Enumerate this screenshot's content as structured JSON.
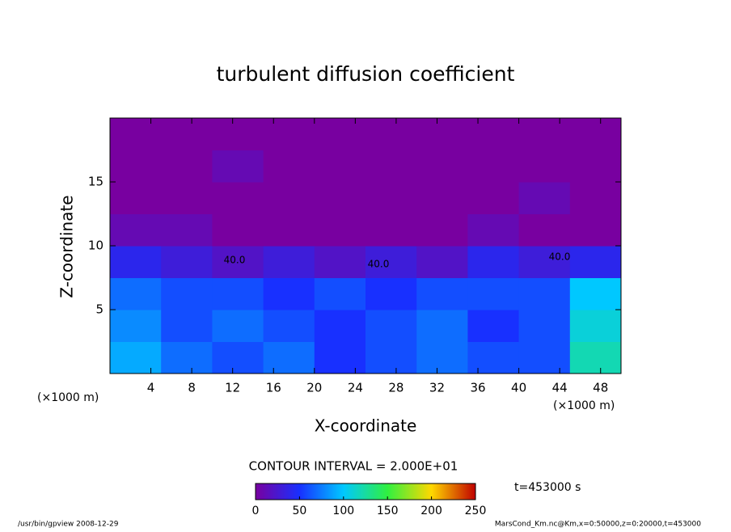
{
  "chart_data": {
    "type": "contour",
    "title": "turbulent diffusion coefficient",
    "x_label": "X-coordinate",
    "y_label": "Z-coordinate",
    "x_unit": "(×1000 m)",
    "y_unit": "(×1000 m)",
    "xlim": [
      0,
      50
    ],
    "ylim": [
      0,
      20
    ],
    "xticks": [
      4,
      8,
      12,
      16,
      20,
      24,
      28,
      32,
      36,
      40,
      44,
      48
    ],
    "yticks": [
      5,
      10,
      15
    ],
    "x_edges": [
      0,
      5,
      10,
      15,
      20,
      25,
      30,
      35,
      40,
      45,
      50
    ],
    "z_edges": [
      0,
      2.5,
      5,
      7.5,
      10,
      12.5,
      15,
      17.5,
      20
    ],
    "values": [
      [
        90,
        70,
        60,
        70,
        50,
        60,
        70,
        60,
        60,
        120
      ],
      [
        80,
        60,
        70,
        60,
        50,
        60,
        70,
        50,
        60,
        110
      ],
      [
        70,
        60,
        60,
        50,
        60,
        50,
        60,
        60,
        60,
        100
      ],
      [
        40,
        30,
        20,
        30,
        20,
        30,
        20,
        40,
        30,
        40
      ],
      [
        10,
        10,
        0,
        0,
        0,
        0,
        0,
        10,
        0,
        0
      ],
      [
        0,
        0,
        0,
        0,
        0,
        0,
        0,
        0,
        10,
        0
      ],
      [
        0,
        0,
        10,
        0,
        0,
        0,
        0,
        0,
        0,
        0
      ],
      [
        0,
        0,
        0,
        0,
        0,
        0,
        0,
        0,
        0,
        0
      ]
    ],
    "contour_labels": [
      "40.0",
      "40.0",
      "40.0"
    ],
    "contour_interval": "CONTOUR INTERVAL = 2.000E+01",
    "time_label": "t=453000 s",
    "clim": [
      0,
      250
    ],
    "cticks": [
      0,
      50,
      100,
      150,
      200,
      250
    ],
    "colormap": [
      "#7800a0",
      "#1830ff",
      "#00c8ff",
      "#30f040",
      "#ffd800",
      "#c00000"
    ],
    "footer_left": "/usr/bin/gpview  2008-12-29",
    "footer_right": "MarsCond_Km.nc@Km,x=0:50000,z=0:20000,t=453000"
  }
}
